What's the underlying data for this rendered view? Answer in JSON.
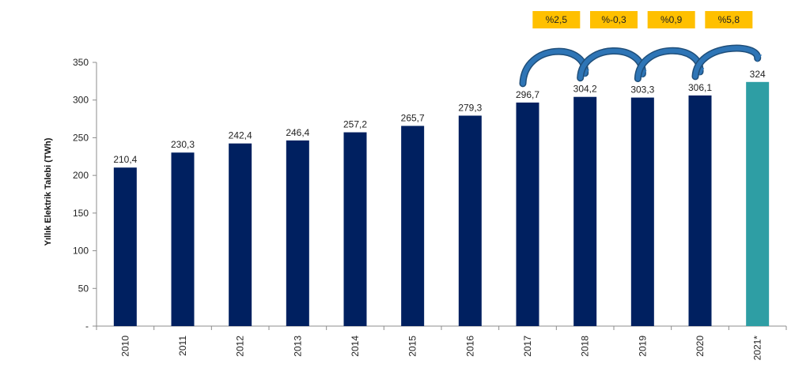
{
  "chart_data": {
    "type": "bar",
    "title": "",
    "xlabel": "",
    "ylabel": "Yıllık Elektrik Talebi (TWh)",
    "ylim": [
      0,
      350
    ],
    "yticks": [
      0,
      50,
      100,
      150,
      200,
      250,
      300,
      350
    ],
    "ytick_labels": [
      "-",
      "50",
      "100",
      "150",
      "200",
      "250",
      "300",
      "350"
    ],
    "categories": [
      "2010",
      "2011",
      "2012",
      "2013",
      "2014",
      "2015",
      "2016",
      "2017",
      "2018",
      "2019",
      "2020",
      "2021*"
    ],
    "values": [
      210.4,
      230.3,
      242.4,
      246.4,
      257.2,
      265.7,
      279.3,
      296.7,
      304.2,
      303.3,
      306.1,
      324
    ],
    "value_labels": [
      "210,4",
      "230,3",
      "242,4",
      "246,4",
      "257,2",
      "265,7",
      "279,3",
      "296,7",
      "304,2",
      "303,3",
      "306,1",
      "324"
    ],
    "bar_colors": [
      "#002060",
      "#002060",
      "#002060",
      "#002060",
      "#002060",
      "#002060",
      "#002060",
      "#002060",
      "#002060",
      "#002060",
      "#002060",
      "#2E9EA4"
    ],
    "grid": false,
    "growth_annotations": [
      {
        "from": "2017",
        "to": "2018",
        "label": "%2,5"
      },
      {
        "from": "2018",
        "to": "2019",
        "label": "%-0,3"
      },
      {
        "from": "2019",
        "to": "2020",
        "label": "%0,9"
      },
      {
        "from": "2020",
        "to": "2021*",
        "label": "%5,8"
      }
    ],
    "colors": {
      "bar": "#002060",
      "forecast_bar": "#2E9EA4",
      "badge": "#FFC000",
      "arrow": "#2E75B6",
      "axis": "#8c8c8c"
    }
  }
}
